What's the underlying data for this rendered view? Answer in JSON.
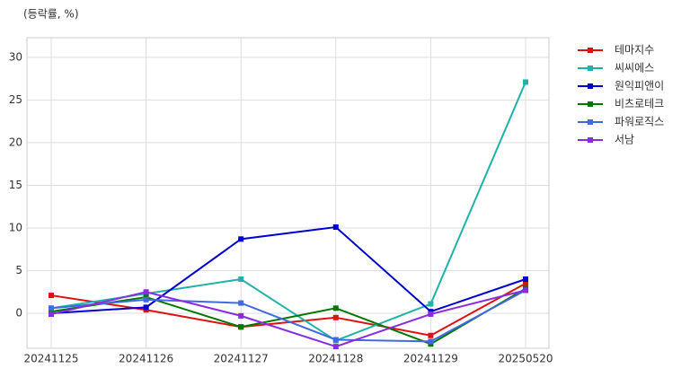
{
  "chart_data": {
    "type": "line",
    "subtitle": "(등락률, %)",
    "categories": [
      "20241125",
      "20241126",
      "20241127",
      "20241128",
      "20241129",
      "20250520"
    ],
    "series": [
      {
        "name": "테마지수",
        "color": "#dd1111",
        "values": [
          2.1,
          0.4,
          -1.6,
          -0.5,
          -2.6,
          3.5
        ]
      },
      {
        "name": "씨씨에스",
        "color": "#20b2aa",
        "values": [
          0.6,
          2.3,
          4.0,
          -3.2,
          1.1,
          27.1
        ]
      },
      {
        "name": "원익피앤이",
        "color": "#0000cc",
        "values": [
          0,
          0.7,
          8.7,
          10.1,
          0.2,
          4.0
        ]
      },
      {
        "name": "비츠로테크",
        "color": "#007700",
        "values": [
          0.2,
          1.9,
          -1.6,
          0.6,
          -3.6,
          2.9
        ]
      },
      {
        "name": "파워로직스",
        "color": "#4169e1",
        "values": [
          0.6,
          1.6,
          1.2,
          -3.1,
          -3.3,
          2.7
        ]
      },
      {
        "name": "서남",
        "color": "#8a2be2",
        "values": [
          -0.1,
          2.5,
          -0.3,
          -3.9,
          -0.1,
          2.7
        ]
      }
    ],
    "ylim": [
      -4.1,
      32.3
    ],
    "yticks": [
      0,
      5,
      10,
      15,
      20,
      25,
      30
    ],
    "grid": true,
    "legend": "outside-right"
  }
}
